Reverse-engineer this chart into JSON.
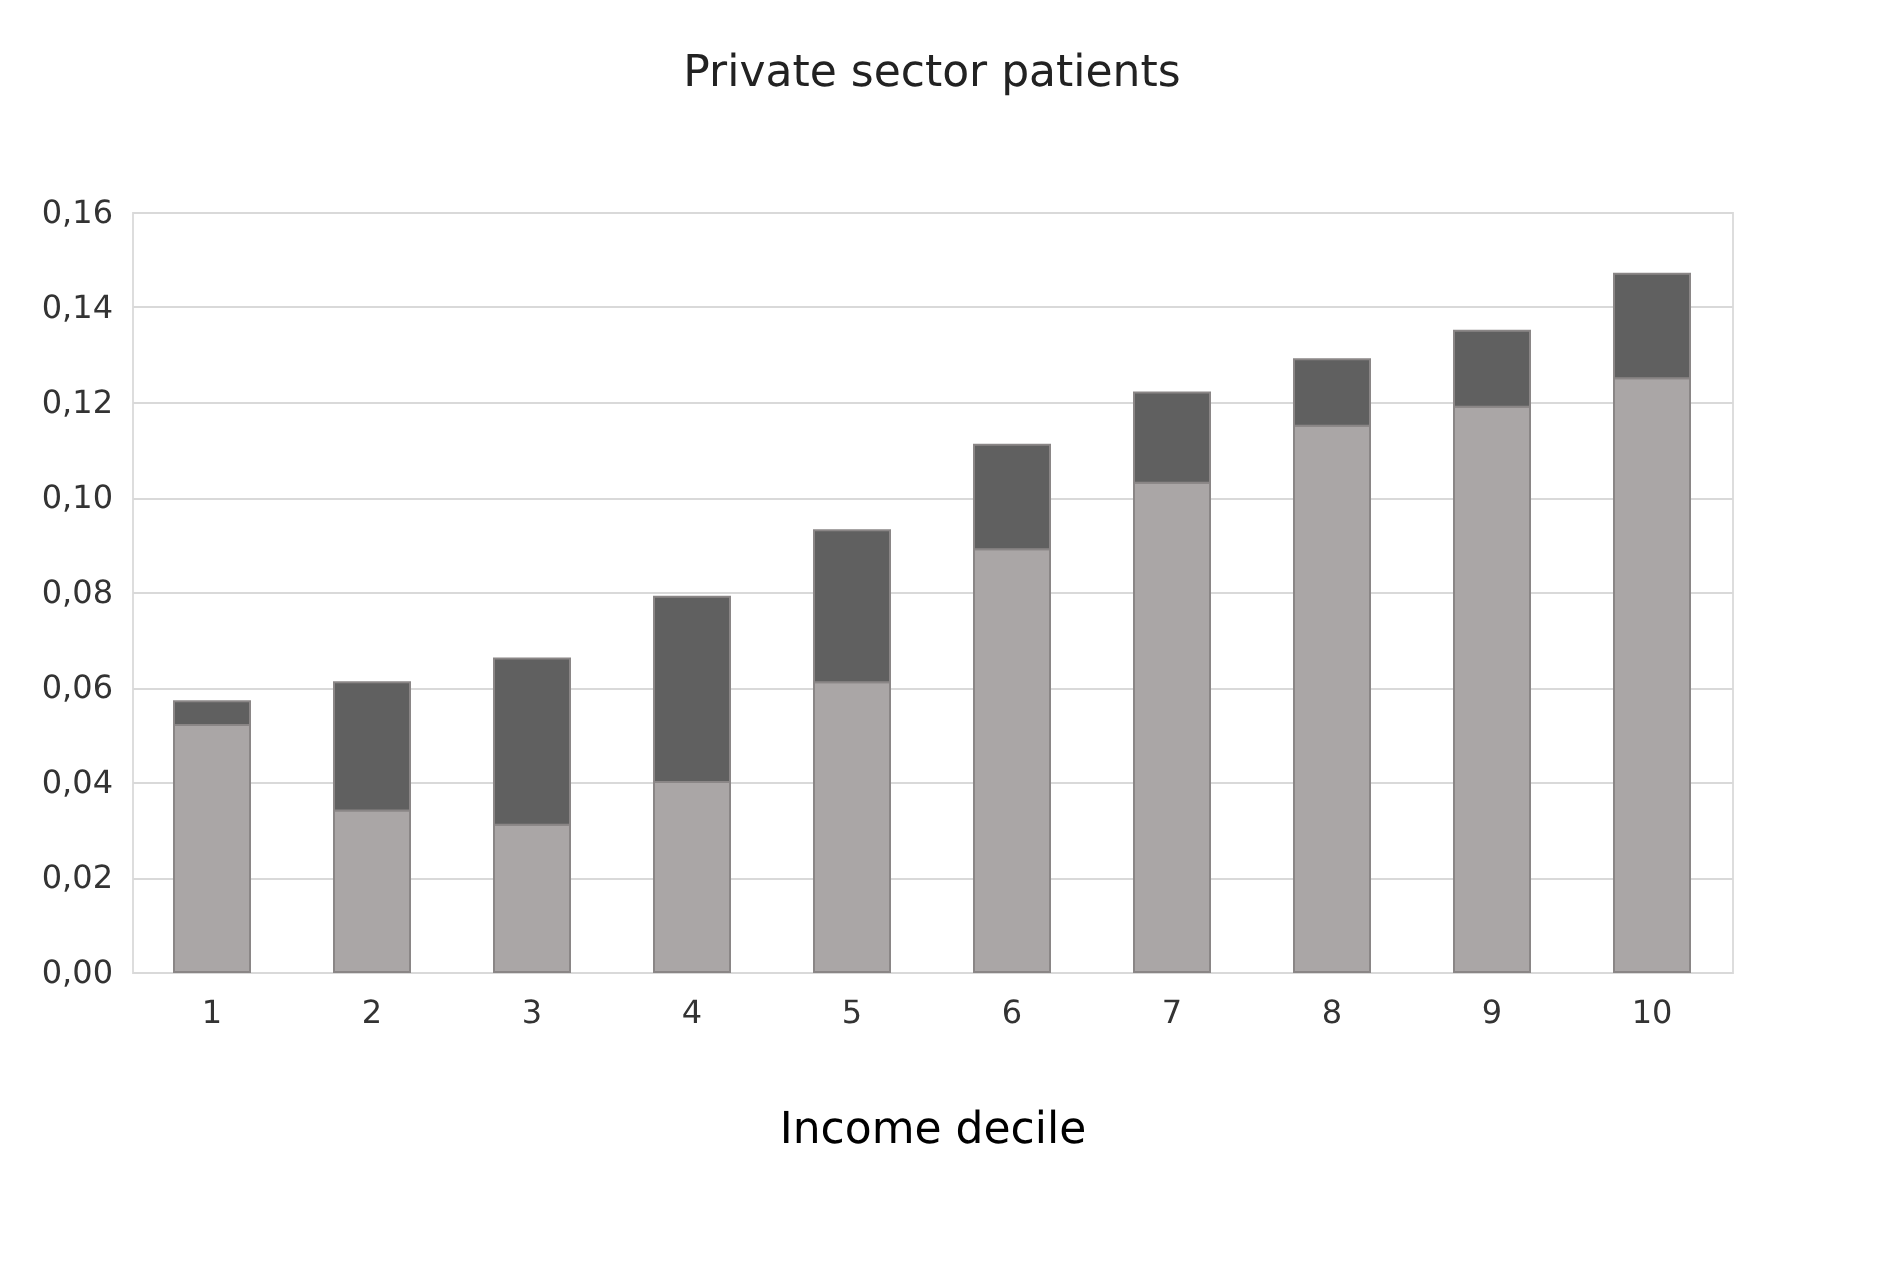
{
  "chart_data": {
    "type": "bar",
    "stacked": true,
    "title": "Private sector patients",
    "xlabel": "Income decile",
    "categories": [
      "1",
      "2",
      "3",
      "4",
      "5",
      "6",
      "7",
      "8",
      "9",
      "10"
    ],
    "series": [
      {
        "color": "#aaa6a6",
        "values": [
          0.052,
          0.034,
          0.031,
          0.04,
          0.061,
          0.089,
          0.103,
          0.115,
          0.119,
          0.125
        ]
      },
      {
        "color": "#606060",
        "values": [
          0.005,
          0.027,
          0.035,
          0.039,
          0.032,
          0.022,
          0.019,
          0.014,
          0.016,
          0.022
        ]
      }
    ],
    "ylim": [
      0,
      0.16
    ],
    "yticks": [
      {
        "value": 0,
        "label": "0,00"
      },
      {
        "value": 0.02,
        "label": "0,02"
      },
      {
        "value": 0.04,
        "label": "0,04"
      },
      {
        "value": 0.06,
        "label": "0,06"
      },
      {
        "value": 0.08,
        "label": "0,08"
      },
      {
        "value": 0.1,
        "label": "0,10"
      },
      {
        "value": 0.12,
        "label": "0,12"
      },
      {
        "value": 0.14,
        "label": "0,14"
      },
      {
        "value": 0.16,
        "label": "0,16"
      }
    ],
    "grid": "y",
    "legend": false
  }
}
